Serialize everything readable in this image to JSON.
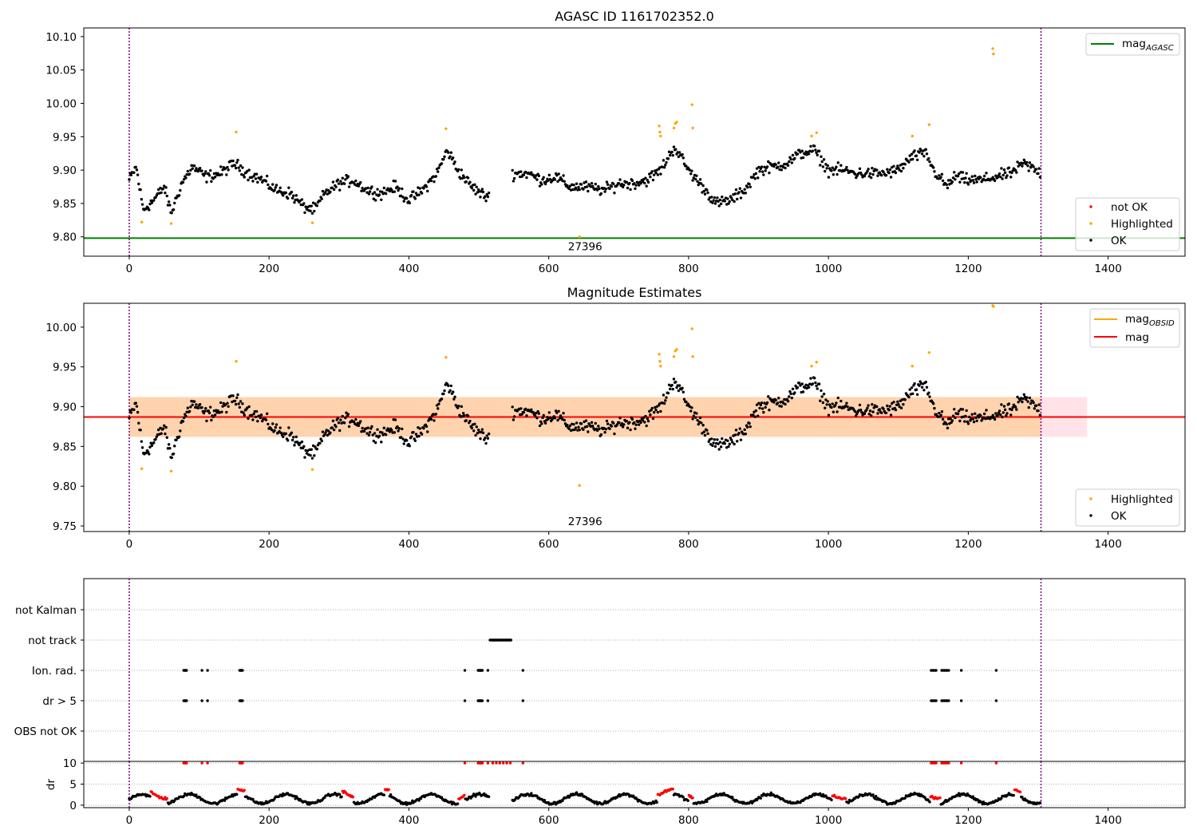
{
  "chart_data": [
    {
      "type": "scatter",
      "title": "AGASC ID 1161702352.0",
      "xlabel": "",
      "ylabel": "",
      "xlim": [
        -65,
        1510
      ],
      "ylim": [
        9.771,
        10.113
      ],
      "x_ticks": [
        0,
        200,
        400,
        600,
        800,
        1000,
        1200,
        1400
      ],
      "y_ticks": [
        9.8,
        9.85,
        9.9,
        9.95,
        10.0,
        10.05,
        10.1
      ],
      "x_tick_labels": [
        "0",
        "200",
        "400",
        "600",
        "800",
        "1000",
        "1200",
        "1400"
      ],
      "y_tick_labels": [
        "9.80",
        "9.85",
        "9.90",
        "9.95",
        "10.00",
        "10.05",
        "10.10"
      ],
      "vlines": [
        0,
        1304
      ],
      "hline": {
        "name": "mag_AGASC",
        "y": 9.798,
        "color": "#008000"
      },
      "annotation": {
        "text": "27396",
        "x": 652,
        "y": 9.786
      },
      "legend_top": {
        "position": "top-right",
        "entries": [
          {
            "label": "mag",
            "sub": "AGASC",
            "color": "#008000"
          }
        ]
      },
      "legend_bottom": {
        "position": "bottom-right",
        "entries": [
          {
            "label": "not OK",
            "color": "#ff0000"
          },
          {
            "label": "Highlighted",
            "color": "#ffa500"
          },
          {
            "label": "OK",
            "color": "#000000"
          }
        ]
      },
      "series": [
        {
          "name": "OK",
          "color": "#000000",
          "model": "mag_trend"
        },
        {
          "name": "Highlighted",
          "color": "#ffa500",
          "points": [
            [
              18,
              9.822
            ],
            [
              60,
              9.82
            ],
            [
              153,
              9.957
            ],
            [
              262,
              9.821
            ],
            [
              453,
              9.962
            ],
            [
              644,
              9.8
            ],
            [
              758,
              9.966
            ],
            [
              759,
              9.957
            ],
            [
              760,
              9.951
            ],
            [
              779,
              9.963
            ],
            [
              781,
              9.97
            ],
            [
              783,
              9.972
            ],
            [
              805,
              9.998
            ],
            [
              806,
              9.963
            ],
            [
              976,
              9.951
            ],
            [
              983,
              9.956
            ],
            [
              1120,
              9.951
            ],
            [
              1144,
              9.968
            ],
            [
              1235,
              10.082
            ],
            [
              1236,
              10.074
            ]
          ]
        },
        {
          "name": "not OK",
          "color": "#ff0000",
          "points": []
        }
      ]
    },
    {
      "type": "scatter",
      "title": "Magnitude Estimates",
      "xlabel": "",
      "ylabel": "",
      "xlim": [
        -65,
        1510
      ],
      "ylim": [
        9.743,
        10.03
      ],
      "x_ticks": [
        0,
        200,
        400,
        600,
        800,
        1000,
        1200,
        1400
      ],
      "y_ticks": [
        9.75,
        9.8,
        9.85,
        9.9,
        9.95,
        10.0
      ],
      "x_tick_labels": [
        "0",
        "200",
        "400",
        "600",
        "800",
        "1000",
        "1200",
        "1400"
      ],
      "y_tick_labels": [
        "9.75",
        "9.80",
        "9.85",
        "9.90",
        "9.95",
        "10.00"
      ],
      "vlines": [
        0,
        1304
      ],
      "mag_line": {
        "name": "mag",
        "y": 9.887,
        "color": "#ff0000"
      },
      "mag_band": {
        "low": 9.862,
        "high": 9.912,
        "color": "#ffc0cb"
      },
      "mag_obsid": {
        "name": "mag_OBSID",
        "y": 9.887,
        "low": 9.862,
        "high": 9.912,
        "x_end": 1304,
        "color": "#ffa500"
      },
      "annotation": {
        "text": "27396",
        "x": 652,
        "y": 9.756
      },
      "legend_top": {
        "position": "top-right",
        "entries": [
          {
            "label": "mag",
            "sub": "OBSID",
            "color": "#ffa500"
          },
          {
            "label": "mag",
            "sub": "",
            "color": "#ff0000"
          }
        ]
      },
      "legend_bottom": {
        "position": "bottom-right",
        "entries": [
          {
            "label": "Highlighted",
            "color": "#ffa500"
          },
          {
            "label": "OK",
            "color": "#000000"
          }
        ]
      },
      "series": [
        {
          "name": "OK",
          "color": "#000000",
          "model": "mag_trend"
        },
        {
          "name": "Highlighted",
          "color": "#ffa500",
          "points": [
            [
              18,
              9.822
            ],
            [
              60,
              9.819
            ],
            [
              153,
              9.957
            ],
            [
              262,
              9.821
            ],
            [
              453,
              9.962
            ],
            [
              644,
              9.801
            ],
            [
              758,
              9.966
            ],
            [
              759,
              9.957
            ],
            [
              760,
              9.951
            ],
            [
              779,
              9.963
            ],
            [
              781,
              9.97
            ],
            [
              783,
              9.972
            ],
            [
              805,
              9.998
            ],
            [
              806,
              9.963
            ],
            [
              976,
              9.951
            ],
            [
              983,
              9.956
            ],
            [
              1120,
              9.951
            ],
            [
              1144,
              9.968
            ],
            [
              1235,
              10.027
            ],
            [
              1236,
              10.026
            ]
          ]
        }
      ]
    },
    {
      "type": "scatter",
      "title": "",
      "xlim": [
        -65,
        1510
      ],
      "x_ticks": [
        0,
        200,
        400,
        600,
        800,
        1000,
        1200,
        1400
      ],
      "x_tick_labels": [
        "0",
        "200",
        "400",
        "600",
        "800",
        "1000",
        "1200",
        "1400"
      ],
      "vlines": [
        0,
        1304
      ],
      "flag_categories": [
        "not Kalman",
        "not track",
        "Ion. rad.",
        "dr > 5",
        "OBS not OK"
      ],
      "flags": {
        "not Kalman": [],
        "not track": {
          "ranges": [
            [
              516,
              546
            ]
          ]
        },
        "Ion. rad.": {
          "points": [
            78,
            79,
            80,
            81,
            82,
            104,
            112,
            158,
            159,
            160,
            161,
            162,
            480,
            499,
            500,
            501,
            502,
            503,
            504,
            505,
            513,
            563,
            1147,
            1148,
            1150,
            1152,
            1154,
            1162,
            1164,
            1166,
            1168,
            1170,
            1172,
            1190,
            1240
          ]
        },
        "dr > 5": {
          "points": [
            78,
            79,
            80,
            81,
            82,
            104,
            112,
            158,
            159,
            160,
            161,
            162,
            480,
            499,
            500,
            501,
            502,
            503,
            504,
            505,
            513,
            563,
            1147,
            1148,
            1150,
            1152,
            1154,
            1162,
            1164,
            1166,
            1168,
            1170,
            1172,
            1190,
            1240
          ]
        },
        "OBS not OK": []
      },
      "dr_panel": {
        "ylabel": "dr",
        "ylim": [
          -0.6,
          10.4
        ],
        "y_ticks": [
          0,
          5,
          10
        ],
        "y_tick_labels": [
          "0",
          "5",
          "10"
        ],
        "clip": 10,
        "clipped_points": [
          78,
          79,
          80,
          81,
          82,
          104,
          112,
          158,
          159,
          160,
          161,
          162,
          480,
          499,
          500,
          501,
          502,
          503,
          504,
          505,
          513,
          520,
          525,
          530,
          535,
          540,
          545,
          563,
          1147,
          1148,
          1150,
          1152,
          1154,
          1162,
          1164,
          1166,
          1168,
          1170,
          1172,
          1190,
          1240
        ],
        "series": [
          {
            "name": "OK",
            "color": "#000000"
          },
          {
            "name": "not OK",
            "color": "#ff0000",
            "ranges": [
              [
                30,
                55
              ],
              [
                155,
                165
              ],
              [
                305,
                320
              ],
              [
                365,
                372
              ],
              [
                470,
                480
              ],
              [
                540,
                548
              ],
              [
                756,
                778
              ],
              [
                800,
                806
              ],
              [
                1005,
                1025
              ],
              [
                1145,
                1160
              ],
              [
                1265,
                1275
              ]
            ]
          }
        ]
      }
    }
  ]
}
